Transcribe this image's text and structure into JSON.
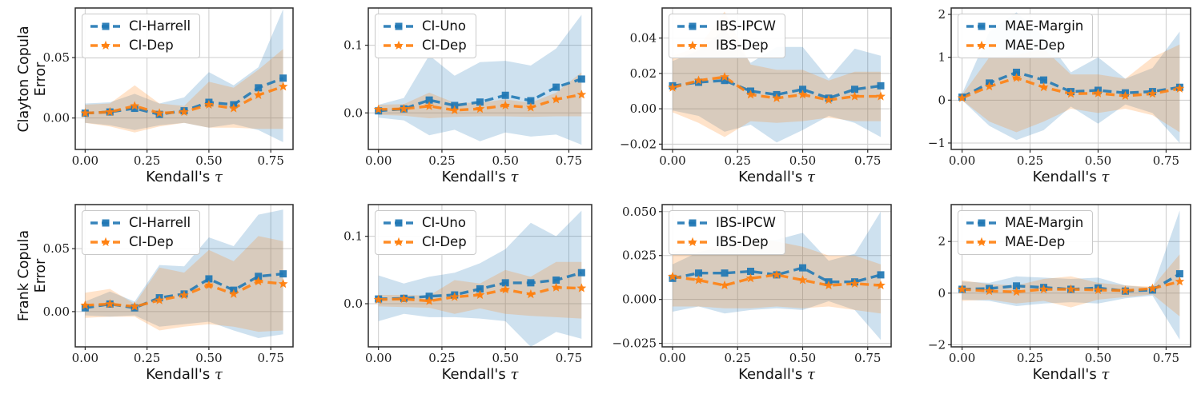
{
  "figure": {
    "background": "#ffffff",
    "xlabel": {
      "prefix": "Kendall's ",
      "tau": "τ"
    },
    "row_labels": [
      {
        "line1": "Clayton Copula",
        "line2": "Error"
      },
      {
        "line1": "Frank Copula",
        "line2": "Error"
      }
    ],
    "colors": {
      "series_blue": "#1f77b4",
      "series_orange": "#ff7f0e",
      "band_opacity": 0.22,
      "grid": "#cccccc",
      "spine": "#2b2b2b",
      "tick_text": "#1a1a1a"
    }
  },
  "chart_data": [
    {
      "type": "line",
      "row": 0,
      "col": 0,
      "ylabel": "Clayton Copula Error",
      "xlabel": "Kendall's τ",
      "legend": [
        "CI-Harrell",
        "CI-Dep"
      ],
      "x": [
        0.0,
        0.1,
        0.2,
        0.3,
        0.4,
        0.5,
        0.6,
        0.7,
        0.8
      ],
      "xlim": [
        -0.04,
        0.84
      ],
      "ylim": [
        -0.026,
        0.091
      ],
      "xticks": [
        0.0,
        0.25,
        0.5,
        0.75
      ],
      "xtick_labels": [
        "0.00",
        "0.25",
        "0.50",
        "0.75"
      ],
      "yticks": [
        0.0,
        0.05
      ],
      "ytick_labels": [
        "0.00",
        "0.05"
      ],
      "grid": true,
      "legend_position": "upper left",
      "series": [
        {
          "name": "CI-Harrell",
          "color": "#1f77b4",
          "marker": "square",
          "values": [
            0.004,
            0.005,
            0.008,
            0.003,
            0.006,
            0.013,
            0.011,
            0.025,
            0.033
          ],
          "band_upper": [
            0.012,
            0.013,
            0.02,
            0.012,
            0.017,
            0.038,
            0.027,
            0.042,
            0.09
          ],
          "band_lower": [
            -0.004,
            -0.006,
            -0.01,
            -0.006,
            -0.004,
            -0.008,
            -0.005,
            -0.01,
            -0.02
          ]
        },
        {
          "name": "CI-Dep",
          "color": "#ff7f0e",
          "marker": "star",
          "values": [
            0.004,
            0.005,
            0.01,
            0.004,
            0.005,
            0.011,
            0.008,
            0.019,
            0.026
          ],
          "band_upper": [
            0.011,
            0.012,
            0.027,
            0.012,
            0.01,
            0.03,
            0.025,
            0.04,
            0.057
          ],
          "band_lower": [
            -0.004,
            -0.007,
            -0.012,
            -0.007,
            -0.004,
            -0.008,
            -0.008,
            -0.009,
            -0.009
          ]
        }
      ]
    },
    {
      "type": "line",
      "row": 0,
      "col": 1,
      "ylabel": "",
      "xlabel": "Kendall's τ",
      "legend": [
        "CI-Uno",
        "CI-Dep"
      ],
      "x": [
        0.0,
        0.1,
        0.2,
        0.3,
        0.4,
        0.5,
        0.6,
        0.7,
        0.8
      ],
      "xlim": [
        -0.04,
        0.84
      ],
      "ylim": [
        -0.054,
        0.155
      ],
      "xticks": [
        0.0,
        0.25,
        0.5,
        0.75
      ],
      "xtick_labels": [
        "0.00",
        "0.25",
        "0.50",
        "0.75"
      ],
      "yticks": [
        0.0,
        0.1
      ],
      "ytick_labels": [
        "0.0",
        "0.1"
      ],
      "grid": true,
      "legend_position": "upper left",
      "series": [
        {
          "name": "CI-Uno",
          "color": "#1f77b4",
          "marker": "square",
          "values": [
            0.003,
            0.006,
            0.019,
            0.011,
            0.016,
            0.026,
            0.018,
            0.038,
            0.05
          ],
          "band_upper": [
            0.012,
            0.022,
            0.085,
            0.055,
            0.075,
            0.077,
            0.07,
            0.095,
            0.145
          ],
          "band_lower": [
            -0.007,
            -0.011,
            -0.033,
            -0.025,
            -0.042,
            -0.029,
            -0.035,
            -0.032,
            -0.047
          ]
        },
        {
          "name": "CI-Dep",
          "color": "#ff7f0e",
          "marker": "star",
          "values": [
            0.005,
            0.006,
            0.01,
            0.004,
            0.006,
            0.011,
            0.008,
            0.02,
            0.027
          ],
          "band_upper": [
            0.012,
            0.013,
            0.03,
            0.015,
            0.015,
            0.02,
            0.015,
            0.03,
            0.06
          ],
          "band_lower": [
            -0.003,
            -0.004,
            -0.008,
            -0.006,
            -0.005,
            -0.005,
            -0.006,
            -0.005,
            -0.005
          ]
        }
      ]
    },
    {
      "type": "line",
      "row": 0,
      "col": 2,
      "ylabel": "",
      "xlabel": "Kendall's τ",
      "legend": [
        "IBS-IPCW",
        "IBS-Dep"
      ],
      "x": [
        0.0,
        0.1,
        0.2,
        0.3,
        0.4,
        0.5,
        0.6,
        0.7,
        0.8
      ],
      "xlim": [
        -0.04,
        0.84
      ],
      "ylim": [
        -0.023,
        0.057
      ],
      "xticks": [
        0.0,
        0.25,
        0.5,
        0.75
      ],
      "xtick_labels": [
        "0.00",
        "0.25",
        "0.50",
        "0.75"
      ],
      "yticks": [
        -0.02,
        0.0,
        0.02,
        0.04
      ],
      "ytick_labels": [
        "−0.02",
        "0.00",
        "0.02",
        "0.04"
      ],
      "grid": true,
      "legend_position": "upper left",
      "series": [
        {
          "name": "IBS-IPCW",
          "color": "#1f77b4",
          "marker": "square",
          "values": [
            0.013,
            0.015,
            0.016,
            0.01,
            0.008,
            0.011,
            0.006,
            0.011,
            0.013
          ],
          "band_upper": [
            0.027,
            0.033,
            0.045,
            0.026,
            0.035,
            0.035,
            0.017,
            0.034,
            0.03
          ],
          "band_lower": [
            -0.001,
            -0.004,
            -0.013,
            -0.009,
            -0.019,
            -0.012,
            -0.004,
            -0.008,
            -0.016
          ]
        },
        {
          "name": "IBS-Dep",
          "color": "#ff7f0e",
          "marker": "star",
          "values": [
            0.012,
            0.016,
            0.018,
            0.008,
            0.006,
            0.008,
            0.005,
            0.007,
            0.007
          ],
          "band_upper": [
            0.03,
            0.035,
            0.055,
            0.025,
            0.022,
            0.022,
            0.016,
            0.021,
            0.021
          ],
          "band_lower": [
            -0.002,
            -0.008,
            -0.016,
            -0.007,
            -0.008,
            -0.007,
            -0.005,
            -0.007,
            -0.007
          ]
        }
      ]
    },
    {
      "type": "line",
      "row": 0,
      "col": 3,
      "ylabel": "",
      "xlabel": "Kendall's τ",
      "legend": [
        "MAE-Margin",
        "MAE-Dep"
      ],
      "x": [
        0.0,
        0.1,
        0.2,
        0.3,
        0.4,
        0.5,
        0.6,
        0.7,
        0.8
      ],
      "xlim": [
        -0.04,
        0.84
      ],
      "ylim": [
        -1.15,
        2.15
      ],
      "xticks": [
        0.0,
        0.25,
        0.5,
        0.75
      ],
      "xtick_labels": [
        "0.00",
        "0.25",
        "0.50",
        "0.75"
      ],
      "yticks": [
        -1,
        0,
        1,
        2
      ],
      "ytick_labels": [
        "−1",
        "0",
        "1",
        "2"
      ],
      "grid": true,
      "legend_position": "upper left",
      "series": [
        {
          "name": "MAE-Margin",
          "color": "#1f77b4",
          "marker": "square",
          "values": [
            0.07,
            0.4,
            0.65,
            0.47,
            0.2,
            0.23,
            0.17,
            0.2,
            0.3
          ],
          "band_upper": [
            0.15,
            1.6,
            2.05,
            1.5,
            0.65,
            1.0,
            0.5,
            0.75,
            1.6
          ],
          "band_lower": [
            0.0,
            -0.6,
            -0.93,
            -0.7,
            -0.15,
            -0.55,
            -0.1,
            -0.3,
            -1.0
          ]
        },
        {
          "name": "MAE-Dep",
          "color": "#ff7f0e",
          "marker": "star",
          "values": [
            0.05,
            0.32,
            0.52,
            0.3,
            0.15,
            0.16,
            0.1,
            0.15,
            0.27
          ],
          "band_upper": [
            0.12,
            1.0,
            1.05,
            1.2,
            0.6,
            0.6,
            0.5,
            1.0,
            1.3
          ],
          "band_lower": [
            0.0,
            -0.5,
            -0.75,
            -0.5,
            -0.2,
            -0.3,
            -0.2,
            -0.35,
            -0.75
          ]
        }
      ]
    },
    {
      "type": "line",
      "row": 1,
      "col": 0,
      "ylabel": "Frank Copula Error",
      "xlabel": "Kendall's τ",
      "legend": [
        "CI-Harrell",
        "CI-Dep"
      ],
      "x": [
        0.0,
        0.1,
        0.2,
        0.3,
        0.4,
        0.5,
        0.6,
        0.7,
        0.8
      ],
      "xlim": [
        -0.04,
        0.84
      ],
      "ylim": [
        -0.028,
        0.085
      ],
      "xticks": [
        0.0,
        0.25,
        0.5,
        0.75
      ],
      "xtick_labels": [
        "0.00",
        "0.25",
        "0.50",
        "0.75"
      ],
      "yticks": [
        0.0,
        0.05
      ],
      "ytick_labels": [
        "0.00",
        "0.05"
      ],
      "grid": true,
      "legend_position": "upper left",
      "series": [
        {
          "name": "CI-Harrell",
          "color": "#1f77b4",
          "marker": "square",
          "values": [
            0.003,
            0.006,
            0.003,
            0.011,
            0.014,
            0.026,
            0.017,
            0.028,
            0.03
          ],
          "band_upper": [
            0.008,
            0.016,
            0.008,
            0.037,
            0.036,
            0.059,
            0.052,
            0.077,
            0.081
          ],
          "band_lower": [
            -0.003,
            -0.004,
            -0.003,
            -0.012,
            -0.01,
            -0.008,
            -0.015,
            -0.021,
            -0.018
          ]
        },
        {
          "name": "CI-Dep",
          "color": "#ff7f0e",
          "marker": "star",
          "values": [
            0.005,
            0.006,
            0.004,
            0.009,
            0.013,
            0.021,
            0.014,
            0.024,
            0.022
          ],
          "band_upper": [
            0.015,
            0.018,
            0.006,
            0.035,
            0.031,
            0.049,
            0.04,
            0.06,
            0.056
          ],
          "band_lower": [
            -0.005,
            -0.004,
            -0.004,
            -0.015,
            -0.012,
            -0.01,
            -0.012,
            -0.016,
            -0.015
          ]
        }
      ]
    },
    {
      "type": "line",
      "row": 1,
      "col": 1,
      "ylabel": "",
      "xlabel": "Kendall's τ",
      "legend": [
        "CI-Uno",
        "CI-Dep"
      ],
      "x": [
        0.0,
        0.1,
        0.2,
        0.3,
        0.4,
        0.5,
        0.6,
        0.7,
        0.8
      ],
      "xlim": [
        -0.04,
        0.84
      ],
      "ylim": [
        -0.064,
        0.147
      ],
      "xticks": [
        0.0,
        0.25,
        0.5,
        0.75
      ],
      "xtick_labels": [
        "0.00",
        "0.25",
        "0.50",
        "0.75"
      ],
      "yticks": [
        0.0,
        0.1
      ],
      "ytick_labels": [
        "0.0",
        "0.1"
      ],
      "grid": true,
      "legend_position": "upper left",
      "series": [
        {
          "name": "CI-Uno",
          "color": "#1f77b4",
          "marker": "square",
          "values": [
            0.007,
            0.008,
            0.011,
            0.013,
            0.022,
            0.031,
            0.031,
            0.035,
            0.046
          ],
          "band_upper": [
            0.042,
            0.03,
            0.04,
            0.046,
            0.06,
            0.081,
            0.12,
            0.1,
            0.138
          ],
          "band_lower": [
            -0.026,
            -0.015,
            -0.02,
            -0.02,
            -0.022,
            -0.026,
            -0.064,
            -0.042,
            -0.052
          ]
        },
        {
          "name": "CI-Dep",
          "color": "#ff7f0e",
          "marker": "star",
          "values": [
            0.006,
            0.007,
            0.004,
            0.01,
            0.013,
            0.021,
            0.014,
            0.024,
            0.023
          ],
          "band_upper": [
            0.013,
            0.013,
            0.012,
            0.035,
            0.03,
            0.05,
            0.04,
            0.062,
            0.062
          ],
          "band_lower": [
            -0.004,
            -0.005,
            -0.006,
            -0.015,
            -0.007,
            -0.015,
            -0.018,
            -0.02,
            -0.022
          ]
        }
      ]
    },
    {
      "type": "line",
      "row": 1,
      "col": 2,
      "ylabel": "",
      "xlabel": "Kendall's τ",
      "legend": [
        "IBS-IPCW",
        "IBS-Dep"
      ],
      "x": [
        0.0,
        0.1,
        0.2,
        0.3,
        0.4,
        0.5,
        0.6,
        0.7,
        0.8
      ],
      "xlim": [
        -0.04,
        0.84
      ],
      "ylim": [
        -0.027,
        0.054
      ],
      "xticks": [
        0.0,
        0.25,
        0.5,
        0.75
      ],
      "xtick_labels": [
        "0.00",
        "0.25",
        "0.50",
        "0.75"
      ],
      "yticks": [
        -0.025,
        0.0,
        0.025,
        0.05
      ],
      "ytick_labels": [
        "−0.025",
        "0.000",
        "0.025",
        "0.050"
      ],
      "grid": true,
      "legend_position": "upper left",
      "series": [
        {
          "name": "IBS-IPCW",
          "color": "#1f77b4",
          "marker": "square",
          "values": [
            0.012,
            0.015,
            0.015,
            0.016,
            0.014,
            0.018,
            0.01,
            0.01,
            0.014
          ],
          "band_upper": [
            0.02,
            0.027,
            0.03,
            0.033,
            0.034,
            0.038,
            0.022,
            0.026,
            0.05
          ],
          "band_lower": [
            -0.007,
            -0.004,
            -0.008,
            -0.006,
            -0.005,
            -0.006,
            -0.001,
            -0.006,
            -0.023
          ]
        },
        {
          "name": "IBS-Dep",
          "color": "#ff7f0e",
          "marker": "star",
          "values": [
            0.013,
            0.011,
            0.008,
            0.012,
            0.014,
            0.011,
            0.008,
            0.009,
            0.008
          ],
          "band_upper": [
            0.027,
            0.03,
            0.03,
            0.035,
            0.033,
            0.03,
            0.025,
            0.025,
            0.02
          ],
          "band_lower": [
            -0.004,
            -0.004,
            -0.005,
            -0.005,
            -0.004,
            -0.005,
            -0.004,
            -0.006,
            -0.008
          ]
        }
      ]
    },
    {
      "type": "line",
      "row": 1,
      "col": 3,
      "ylabel": "",
      "xlabel": "Kendall's τ",
      "legend": [
        "MAE-Margin",
        "MAE-Dep"
      ],
      "x": [
        0.0,
        0.1,
        0.2,
        0.3,
        0.4,
        0.5,
        0.6,
        0.7,
        0.8
      ],
      "xlim": [
        -0.04,
        0.84
      ],
      "ylim": [
        -2.08,
        3.43
      ],
      "xticks": [
        0.0,
        0.25,
        0.5,
        0.75
      ],
      "xtick_labels": [
        "0.00",
        "0.25",
        "0.50",
        "0.75"
      ],
      "yticks": [
        -2,
        0,
        2
      ],
      "ytick_labels": [
        "−2",
        "0",
        "2"
      ],
      "grid": true,
      "legend_position": "upper left",
      "series": [
        {
          "name": "MAE-Margin",
          "color": "#1f77b4",
          "marker": "square",
          "values": [
            0.15,
            0.18,
            0.28,
            0.22,
            0.15,
            0.2,
            0.08,
            0.12,
            0.75
          ],
          "band_upper": [
            0.45,
            0.4,
            0.65,
            0.6,
            0.55,
            0.6,
            0.3,
            0.2,
            3.2
          ],
          "band_lower": [
            -0.25,
            -0.3,
            -0.5,
            -0.4,
            -0.35,
            -0.4,
            -0.2,
            -0.1,
            -1.8
          ]
        },
        {
          "name": "MAE-Dep",
          "color": "#ff7f0e",
          "marker": "star",
          "values": [
            0.15,
            0.08,
            0.05,
            0.15,
            0.15,
            0.12,
            0.1,
            0.18,
            0.45
          ],
          "band_upper": [
            0.5,
            0.35,
            0.3,
            0.55,
            0.65,
            0.4,
            0.3,
            0.25,
            1.5
          ],
          "band_lower": [
            -0.3,
            -0.25,
            -0.4,
            -0.3,
            -0.55,
            -0.25,
            -0.15,
            -0.05,
            -0.9
          ]
        }
      ]
    }
  ]
}
